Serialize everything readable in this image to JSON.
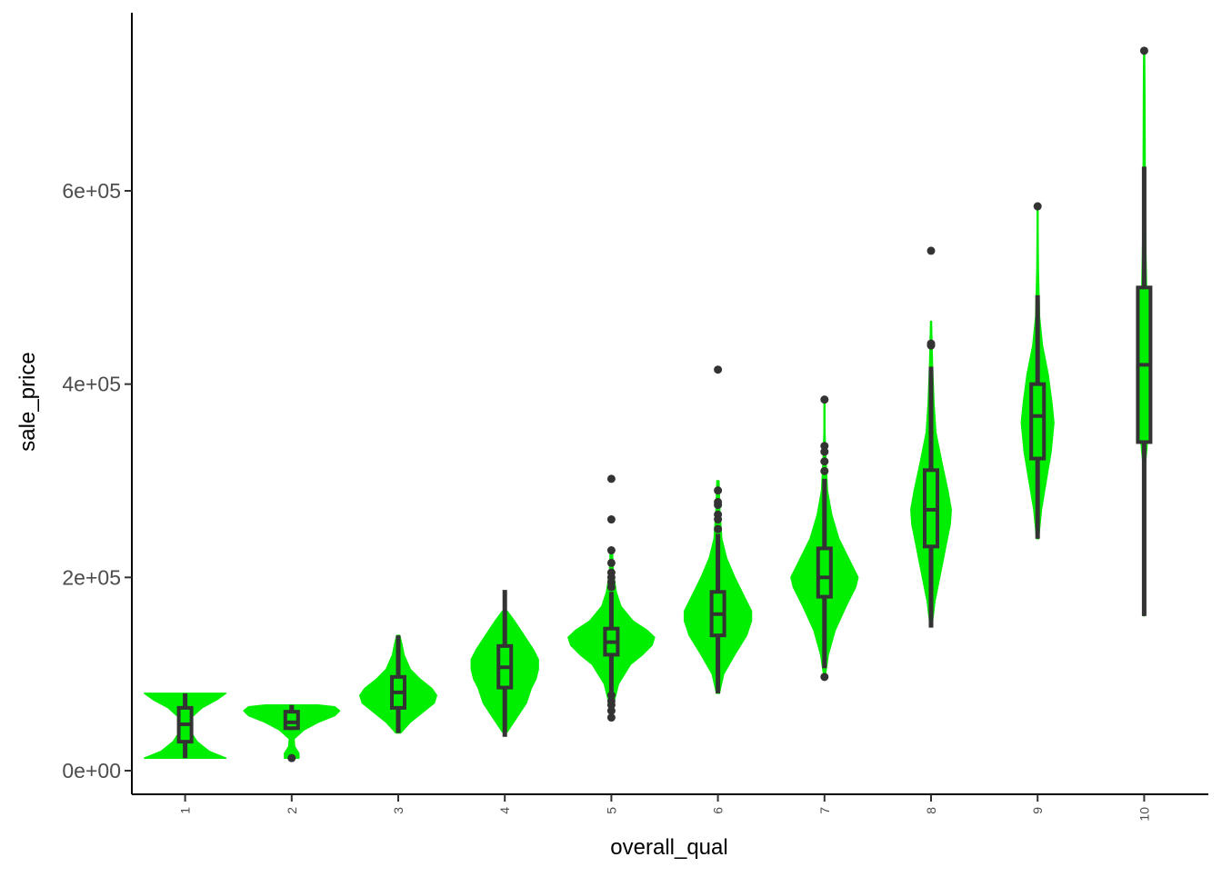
{
  "chart_data": {
    "type": "violin",
    "xlabel": "overall_qual",
    "ylabel": "sale_price",
    "ylim": [
      -20000,
      780000
    ],
    "y_ticks": [
      {
        "value": 0,
        "label": "0e+00"
      },
      {
        "value": 200000,
        "label": "2e+05"
      },
      {
        "value": 400000,
        "label": "4e+05"
      },
      {
        "value": 600000,
        "label": "6e+05"
      }
    ],
    "categories": [
      "1",
      "2",
      "3",
      "4",
      "5",
      "6",
      "7",
      "8",
      "9",
      "10"
    ],
    "violin_color": "#00ee00",
    "box_color": "#333333",
    "groups": [
      {
        "category": "1",
        "violin_min": 13000,
        "violin_max": 80000,
        "density": [
          [
            13000,
            0.85
          ],
          [
            20000,
            0.5
          ],
          [
            30000,
            0.25
          ],
          [
            40000,
            0.12
          ],
          [
            48000,
            0.1
          ],
          [
            56000,
            0.15
          ],
          [
            65000,
            0.35
          ],
          [
            73000,
            0.65
          ],
          [
            80000,
            0.85
          ]
        ],
        "whisker_low": 13000,
        "q1": 30000,
        "median": 48000,
        "q3": 65000,
        "whisker_high": 80000,
        "outliers": []
      },
      {
        "category": "2",
        "violin_min": 13000,
        "violin_max": 68000,
        "density": [
          [
            13000,
            0.15
          ],
          [
            18000,
            0.15
          ],
          [
            25000,
            0.06
          ],
          [
            33000,
            0.05
          ],
          [
            42000,
            0.25
          ],
          [
            50000,
            0.55
          ],
          [
            57000,
            0.9
          ],
          [
            62000,
            1.0
          ],
          [
            66000,
            0.9
          ],
          [
            68000,
            0.55
          ]
        ],
        "whisker_low": 42000,
        "q1": 44000,
        "median": 50000,
        "q3": 61000,
        "whisker_high": 68000,
        "outliers": [
          13000
        ]
      },
      {
        "category": "3",
        "violin_min": 39000,
        "violin_max": 140000,
        "density": [
          [
            39000,
            0.05
          ],
          [
            50000,
            0.25
          ],
          [
            60000,
            0.5
          ],
          [
            70000,
            0.75
          ],
          [
            78000,
            0.8
          ],
          [
            85000,
            0.7
          ],
          [
            95000,
            0.45
          ],
          [
            105000,
            0.25
          ],
          [
            120000,
            0.12
          ],
          [
            130000,
            0.08
          ],
          [
            140000,
            0.03
          ]
        ],
        "whisker_low": 39000,
        "q1": 65000,
        "median": 81000,
        "q3": 97000,
        "whisker_high": 140000,
        "outliers": []
      },
      {
        "category": "4",
        "violin_min": 40000,
        "violin_max": 165000,
        "density": [
          [
            40000,
            0.05
          ],
          [
            55000,
            0.25
          ],
          [
            70000,
            0.45
          ],
          [
            85000,
            0.55
          ],
          [
            95000,
            0.65
          ],
          [
            105000,
            0.7
          ],
          [
            115000,
            0.7
          ],
          [
            125000,
            0.6
          ],
          [
            140000,
            0.4
          ],
          [
            155000,
            0.2
          ],
          [
            165000,
            0.05
          ]
        ],
        "whisker_low": 35000,
        "q1": 86000,
        "median": 107000,
        "q3": 129000,
        "whisker_high": 187000,
        "outliers": []
      },
      {
        "category": "5",
        "violin_min": 70000,
        "violin_max": 230000,
        "density": [
          [
            70000,
            0.05
          ],
          [
            90000,
            0.15
          ],
          [
            110000,
            0.4
          ],
          [
            120000,
            0.65
          ],
          [
            130000,
            0.85
          ],
          [
            138000,
            0.9
          ],
          [
            145000,
            0.75
          ],
          [
            155000,
            0.45
          ],
          [
            170000,
            0.2
          ],
          [
            185000,
            0.1
          ],
          [
            205000,
            0.04
          ],
          [
            230000,
            0.02
          ]
        ],
        "whisker_low": 80000,
        "q1": 120000,
        "median": 133000,
        "q3": 147000,
        "whisker_high": 185000,
        "outliers": [
          55000,
          62000,
          68000,
          72000,
          78000,
          190000,
          195000,
          200000,
          205000,
          215000,
          228000,
          260000,
          302000
        ]
      },
      {
        "category": "6",
        "violin_min": 80000,
        "violin_max": 300000,
        "density": [
          [
            80000,
            0.03
          ],
          [
            100000,
            0.12
          ],
          [
            120000,
            0.35
          ],
          [
            140000,
            0.6
          ],
          [
            155000,
            0.7
          ],
          [
            165000,
            0.7
          ],
          [
            180000,
            0.55
          ],
          [
            200000,
            0.35
          ],
          [
            220000,
            0.18
          ],
          [
            240000,
            0.08
          ],
          [
            270000,
            0.04
          ],
          [
            300000,
            0.02
          ]
        ],
        "whisker_low": 80000,
        "q1": 140000,
        "median": 162000,
        "q3": 185000,
        "whisker_high": 245000,
        "outliers": [
          250000,
          260000,
          265000,
          275000,
          278000,
          290000,
          415000
        ]
      },
      {
        "category": "7",
        "violin_min": 100000,
        "violin_max": 380000,
        "density": [
          [
            100000,
            0.02
          ],
          [
            120000,
            0.08
          ],
          [
            145000,
            0.22
          ],
          [
            170000,
            0.45
          ],
          [
            190000,
            0.65
          ],
          [
            200000,
            0.7
          ],
          [
            215000,
            0.55
          ],
          [
            240000,
            0.3
          ],
          [
            265000,
            0.15
          ],
          [
            290000,
            0.06
          ],
          [
            320000,
            0.03
          ],
          [
            350000,
            0.01
          ],
          [
            380000,
            0.01
          ]
        ],
        "whisker_low": 106000,
        "q1": 180000,
        "median": 200000,
        "q3": 230000,
        "whisker_high": 302000,
        "outliers": [
          97000,
          310000,
          320000,
          330000,
          336000,
          384000
        ]
      },
      {
        "category": "8",
        "violin_min": 150000,
        "violin_max": 465000,
        "density": [
          [
            150000,
            0.02
          ],
          [
            175000,
            0.08
          ],
          [
            200000,
            0.18
          ],
          [
            230000,
            0.3
          ],
          [
            255000,
            0.4
          ],
          [
            270000,
            0.42
          ],
          [
            290000,
            0.35
          ],
          [
            320000,
            0.22
          ],
          [
            350000,
            0.1
          ],
          [
            380000,
            0.06
          ],
          [
            420000,
            0.03
          ],
          [
            465000,
            0.01
          ]
        ],
        "whisker_low": 148000,
        "q1": 232000,
        "median": 270000,
        "q3": 311000,
        "whisker_high": 418000,
        "outliers": [
          440000,
          442000,
          538000
        ]
      },
      {
        "category": "9",
        "violin_min": 240000,
        "violin_max": 580000,
        "density": [
          [
            240000,
            0.02
          ],
          [
            270000,
            0.08
          ],
          [
            300000,
            0.18
          ],
          [
            330000,
            0.28
          ],
          [
            360000,
            0.34
          ],
          [
            380000,
            0.3
          ],
          [
            410000,
            0.22
          ],
          [
            440000,
            0.1
          ],
          [
            470000,
            0.04
          ],
          [
            520000,
            0.015
          ],
          [
            560000,
            0.01
          ],
          [
            580000,
            0.01
          ]
        ],
        "whisker_low": 240000,
        "q1": 323000,
        "median": 367000,
        "q3": 400000,
        "whisker_high": 492000,
        "outliers": [
          584000
        ]
      },
      {
        "category": "10",
        "violin_min": 160000,
        "violin_max": 745000,
        "density": [
          [
            160000,
            0.0
          ],
          [
            310000,
            0.01
          ],
          [
            330000,
            0.05
          ],
          [
            360000,
            0.1
          ],
          [
            400000,
            0.12
          ],
          [
            430000,
            0.11
          ],
          [
            470000,
            0.08
          ],
          [
            500000,
            0.05
          ],
          [
            550000,
            0.03
          ],
          [
            620000,
            0.02
          ],
          [
            700000,
            0.015
          ],
          [
            745000,
            0.01
          ]
        ],
        "whisker_low": 160000,
        "q1": 340000,
        "median": 420000,
        "q3": 500000,
        "whisker_high": 625000,
        "outliers": [
          745000
        ]
      }
    ]
  }
}
